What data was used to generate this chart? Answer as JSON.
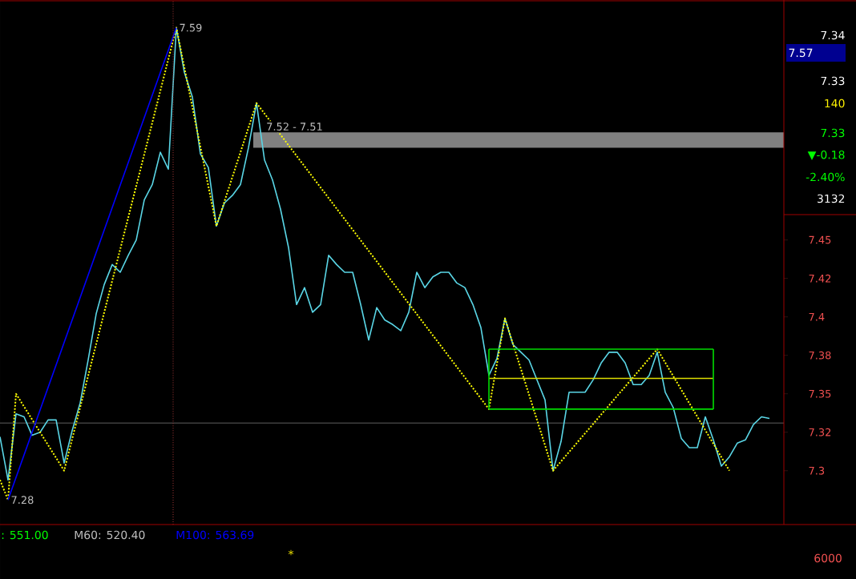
{
  "chart_data": {
    "type": "line",
    "categories": [
      null,
      null,
      null,
      null,
      null,
      null,
      null,
      null,
      null,
      null,
      null,
      null,
      null,
      null,
      null,
      null,
      null,
      null,
      null,
      null,
      null,
      null,
      null,
      null,
      null,
      null,
      null,
      null,
      null,
      null,
      null,
      null,
      null,
      null,
      null,
      null,
      null,
      null,
      null,
      null,
      null,
      null,
      null,
      null,
      null,
      null,
      null,
      null,
      null,
      null,
      null,
      null,
      null,
      null,
      null,
      null,
      null,
      null,
      null,
      null,
      null,
      null,
      null,
      null,
      null,
      null,
      null,
      null,
      null,
      null,
      null,
      null,
      null,
      null,
      null,
      null,
      null,
      null,
      null,
      null,
      null,
      null,
      null,
      null,
      null,
      null,
      null,
      null,
      null,
      null,
      null,
      null,
      null,
      null,
      null,
      null,
      null
    ],
    "series": [
      {
        "color": "#5ad6e6",
        "line_style": "solid",
        "values": [
          7.322,
          7.294,
          7.337,
          7.335,
          7.323,
          7.325,
          7.333,
          7.333,
          7.305,
          7.326,
          7.344,
          7.372,
          7.402,
          7.421,
          7.434,
          7.429,
          7.44,
          7.45,
          7.476,
          7.486,
          7.507,
          7.496,
          7.588,
          7.559,
          7.543,
          7.506,
          7.497,
          7.459,
          7.474,
          7.479,
          7.486,
          7.51,
          7.539,
          7.502,
          7.489,
          7.47,
          7.445,
          7.408,
          7.419,
          7.403,
          7.408,
          7.44,
          7.434,
          7.429,
          7.429,
          7.408,
          7.385,
          7.406,
          7.398,
          7.395,
          7.391,
          7.403,
          7.429,
          7.419,
          7.426,
          7.429,
          7.429,
          7.422,
          7.419,
          7.408,
          7.393,
          7.362,
          7.373,
          7.399,
          7.382,
          7.377,
          7.372,
          7.359,
          7.346,
          7.3,
          7.319,
          7.351,
          7.351,
          7.351,
          7.359,
          7.37,
          7.377,
          7.377,
          7.37,
          7.356,
          7.356,
          7.362,
          7.377,
          7.351,
          7.341,
          7.321,
          7.315,
          7.315,
          7.335,
          7.32,
          7.303,
          7.309,
          7.318,
          7.32,
          7.33,
          7.335,
          7.334
        ]
      },
      {
        "color": "#ffff00",
        "line_style": "dotted",
        "values": [
          7.294,
          7.281,
          7.35,
          null,
          null,
          null,
          null,
          null,
          7.3,
          null,
          null,
          null,
          null,
          null,
          null,
          null,
          null,
          null,
          null,
          null,
          null,
          null,
          7.588,
          null,
          null,
          null,
          null,
          7.459,
          null,
          null,
          null,
          null,
          7.539,
          null,
          null,
          null,
          null,
          null,
          null,
          null,
          null,
          null,
          null,
          null,
          null,
          null,
          null,
          null,
          null,
          null,
          null,
          null,
          null,
          null,
          null,
          null,
          null,
          null,
          null,
          null,
          null,
          7.34,
          null,
          7.399,
          null,
          null,
          null,
          null,
          null,
          7.3,
          null,
          null,
          null,
          null,
          null,
          null,
          null,
          null,
          null,
          null,
          null,
          null,
          7.379,
          null,
          null,
          null,
          null,
          null,
          null,
          null,
          null,
          7.3,
          null,
          null,
          null,
          null,
          null
        ]
      },
      {
        "color": "#0000ff",
        "line_style": "solid",
        "values": [
          null,
          7.281,
          null,
          null,
          null,
          null,
          null,
          null,
          null,
          null,
          null,
          null,
          null,
          null,
          null,
          null,
          null,
          null,
          null,
          null,
          null,
          null,
          7.588,
          null,
          null,
          null,
          null,
          null,
          null,
          null,
          null,
          null,
          null,
          null,
          null,
          null,
          null,
          null,
          null,
          null,
          null,
          null,
          null,
          null,
          null,
          null,
          null,
          null,
          null,
          null,
          null,
          null,
          null,
          null,
          null,
          null,
          null,
          null,
          null,
          null,
          null,
          null,
          null,
          null,
          null,
          null,
          null,
          null,
          null,
          null,
          null,
          null,
          null,
          null,
          null,
          null,
          null,
          null,
          null,
          null,
          null,
          null,
          null,
          null,
          null,
          null,
          null,
          null,
          null,
          null,
          null,
          null,
          null,
          null,
          null,
          null,
          null
        ]
      },
      {
        "color": "#00dd00",
        "line_style": "solid",
        "values": [
          null,
          null,
          null,
          null,
          null,
          null,
          null,
          null,
          null,
          null,
          null,
          null,
          null,
          null,
          null,
          null,
          null,
          null,
          null,
          null,
          null,
          null,
          null,
          null,
          null,
          null,
          null,
          null,
          null,
          null,
          null,
          null,
          null,
          null,
          null,
          null,
          null,
          null,
          null,
          null,
          null,
          null,
          null,
          null,
          null,
          null,
          null,
          null,
          null,
          null,
          null,
          null,
          null,
          null,
          null,
          null,
          null,
          null,
          null,
          null,
          null,
          7.379,
          null,
          null,
          null,
          null,
          null,
          null,
          null,
          null,
          null,
          null,
          null,
          null,
          null,
          null,
          null,
          null,
          null,
          null,
          null,
          null,
          null,
          null,
          null,
          null,
          null,
          null,
          null,
          7.379,
          null,
          null,
          null,
          null,
          null,
          null,
          null
        ]
      },
      {
        "color": "#00dd00",
        "line_style": "solid",
        "values": [
          null,
          null,
          null,
          null,
          null,
          null,
          null,
          null,
          null,
          null,
          null,
          null,
          null,
          null,
          null,
          null,
          null,
          null,
          null,
          null,
          null,
          null,
          null,
          null,
          null,
          null,
          null,
          null,
          null,
          null,
          null,
          null,
          null,
          null,
          null,
          null,
          null,
          null,
          null,
          null,
          null,
          null,
          null,
          null,
          null,
          null,
          null,
          null,
          null,
          null,
          null,
          null,
          null,
          null,
          null,
          null,
          null,
          null,
          null,
          null,
          null,
          7.34,
          null,
          null,
          null,
          null,
          null,
          null,
          null,
          null,
          null,
          null,
          null,
          null,
          null,
          null,
          null,
          null,
          null,
          null,
          null,
          null,
          null,
          null,
          null,
          null,
          null,
          null,
          null,
          7.34,
          null,
          null,
          null,
          null,
          null,
          null,
          null
        ]
      },
      {
        "color": "#dddd00",
        "line_style": "solid",
        "values": [
          null,
          null,
          null,
          null,
          null,
          null,
          null,
          null,
          null,
          null,
          null,
          null,
          null,
          null,
          null,
          null,
          null,
          null,
          null,
          null,
          null,
          null,
          null,
          null,
          null,
          null,
          null,
          null,
          null,
          null,
          null,
          null,
          null,
          null,
          null,
          null,
          null,
          null,
          null,
          null,
          null,
          null,
          null,
          null,
          null,
          null,
          null,
          null,
          null,
          null,
          null,
          null,
          null,
          null,
          null,
          null,
          null,
          null,
          null,
          null,
          null,
          7.36,
          null,
          null,
          null,
          null,
          null,
          null,
          null,
          null,
          null,
          null,
          null,
          null,
          null,
          null,
          null,
          null,
          null,
          null,
          null,
          null,
          null,
          null,
          null,
          null,
          null,
          null,
          null,
          7.36,
          null,
          null,
          null,
          null,
          null,
          null,
          null
        ]
      }
    ],
    "ylim": [
      7.265,
      7.606
    ],
    "yticks": [
      7.3,
      {
        "value": 7.325,
        "label": "7.32"
      },
      7.35,
      {
        "value": 7.375,
        "label": "7.38"
      },
      7.4,
      {
        "value": 7.425,
        "label": "7.42"
      },
      7.45
    ],
    "tick_labels": "y",
    "grid": false,
    "marker": "none",
    "bands": [
      {
        "axis": "y",
        "from": 7.51,
        "to": 7.52,
        "label": "7.52 - 7.51",
        "color": "#808080"
      }
    ],
    "ref_lines": [
      {
        "axis": "y",
        "value": 7.331,
        "color": "#606060",
        "line_style": "solid"
      }
    ],
    "annotations": [
      "7.34",
      "7.57",
      "7.33",
      "140",
      "7.33",
      "▼-0.18",
      "-2.40%",
      "3132",
      ": 551.00",
      "M60: 520.40",
      "M100: 563.69",
      "6000",
      "*",
      "7.59",
      "7.28"
    ]
  }
}
